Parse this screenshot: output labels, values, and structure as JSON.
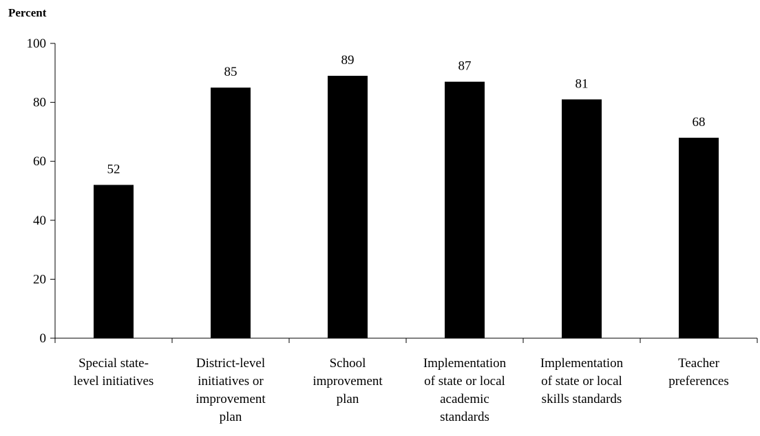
{
  "chart_data": {
    "type": "bar",
    "title": "",
    "xlabel": "",
    "ylabel": "Percent",
    "ylim": [
      0,
      100
    ],
    "yticks": [
      0,
      20,
      40,
      60,
      80,
      100
    ],
    "grid": false,
    "bar_color": "#000000",
    "categories": [
      [
        "Special state-",
        "level initiatives"
      ],
      [
        "District-level",
        "initiatives or",
        "improvement",
        "plan"
      ],
      [
        "School",
        "improvement",
        "plan"
      ],
      [
        "Implementation",
        "of state or local",
        "academic",
        "standards"
      ],
      [
        "Implementation",
        "of state or local",
        "skills standards"
      ],
      [
        "Teacher",
        "preferences"
      ]
    ],
    "values": [
      52,
      85,
      89,
      87,
      81,
      68
    ],
    "data_labels": [
      "52",
      "85",
      "89",
      "87",
      "81",
      "68"
    ]
  }
}
